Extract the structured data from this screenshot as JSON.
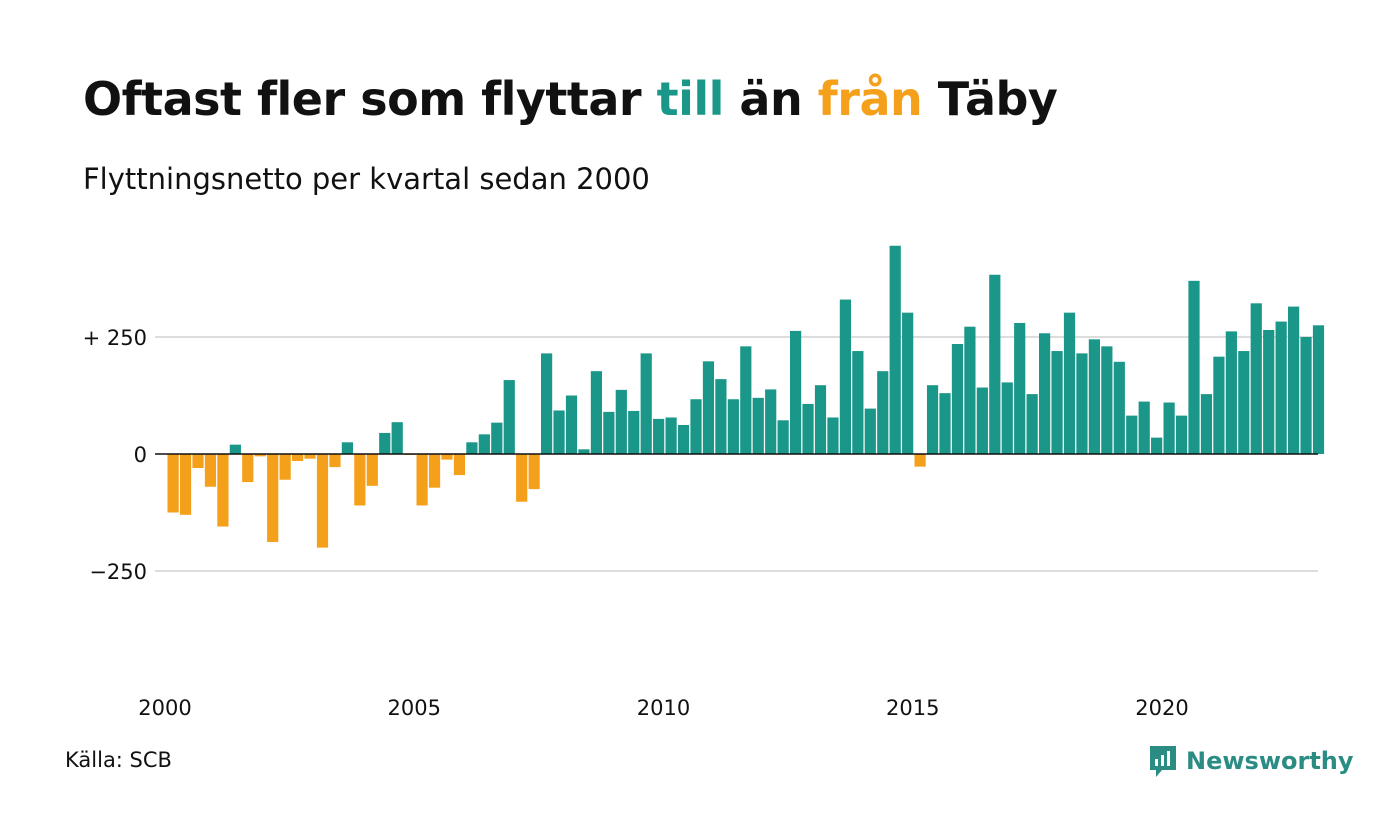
{
  "title": {
    "part1": "Oftast fler som flyttar ",
    "till": "till",
    "part2": " än ",
    "fran": "från",
    "part3": " Täby"
  },
  "subtitle": "Flyttningsnetto per kvartal sedan 2000",
  "source": "Källa: SCB",
  "logo": {
    "text": "Newsworthy",
    "icon": "newsworthy-logo-icon"
  },
  "colors": {
    "positive": "#1a9788",
    "negative": "#f5a01a",
    "till": "#1a9788",
    "fran": "#f5a01a",
    "grid": "#dddddd",
    "zero": "#111111"
  },
  "chart_data": {
    "type": "bar",
    "ylim": [
      -425,
      450
    ],
    "yticks": [
      {
        "value": 250,
        "label": "+ 250"
      },
      {
        "value": 0,
        "label": "0"
      },
      {
        "value": -250,
        "label": "−250"
      }
    ],
    "xticks": [
      {
        "year": 2000,
        "label": "2000"
      },
      {
        "year": 2005,
        "label": "2005"
      },
      {
        "year": 2010,
        "label": "2010"
      },
      {
        "year": 2015,
        "label": "2015"
      },
      {
        "year": 2020,
        "label": "2020"
      }
    ],
    "categories": [
      "2000K1",
      "2000K2",
      "2000K3",
      "2000K4",
      "2001K1",
      "2001K2",
      "2001K3",
      "2001K4",
      "2002K1",
      "2002K2",
      "2002K3",
      "2002K4",
      "2003K1",
      "2003K2",
      "2003K3",
      "2003K4",
      "2004K1",
      "2004K2",
      "2004K3",
      "2004K4",
      "2005K1",
      "2005K2",
      "2005K3",
      "2005K4",
      "2006K1",
      "2006K2",
      "2006K3",
      "2006K4",
      "2007K1",
      "2007K2",
      "2007K3",
      "2007K4",
      "2008K1",
      "2008K2",
      "2008K3",
      "2008K4",
      "2009K1",
      "2009K2",
      "2009K3",
      "2009K4",
      "2010K1",
      "2010K2",
      "2010K3",
      "2010K4",
      "2011K1",
      "2011K2",
      "2011K3",
      "2011K4",
      "2012K1",
      "2012K2",
      "2012K3",
      "2012K4",
      "2013K1",
      "2013K2",
      "2013K3",
      "2013K4",
      "2014K1",
      "2014K2",
      "2014K3",
      "2014K4",
      "2015K1",
      "2015K2",
      "2015K3",
      "2015K4",
      "2016K1",
      "2016K2",
      "2016K3",
      "2016K4",
      "2017K1",
      "2017K2",
      "2017K3",
      "2017K4",
      "2018K1",
      "2018K2",
      "2018K3",
      "2018K4",
      "2019K1",
      "2019K2",
      "2019K3",
      "2019K4",
      "2020K1",
      "2020K2",
      "2020K3",
      "2020K4",
      "2021K1",
      "2021K2",
      "2021K3",
      "2021K4",
      "2022K1",
      "2022K2",
      "2022K3",
      "2022K4",
      "2023K1"
    ],
    "values": [
      -125,
      -130,
      -30,
      -70,
      -155,
      20,
      -60,
      -5,
      -188,
      -55,
      -15,
      -10,
      -200,
      -28,
      25,
      -110,
      -68,
      45,
      68,
      -2,
      -110,
      -72,
      -12,
      -45,
      25,
      42,
      67,
      158,
      -102,
      -75,
      215,
      93,
      125,
      10,
      177,
      90,
      137,
      92,
      215,
      75,
      78,
      62,
      117,
      198,
      160,
      117,
      230,
      120,
      138,
      72,
      263,
      107,
      147,
      78,
      330,
      220,
      97,
      177,
      445,
      302,
      -27,
      147,
      130,
      235,
      272,
      142,
      383,
      153,
      280,
      128,
      258,
      220,
      302,
      215,
      245,
      230,
      197,
      82,
      112,
      35,
      110,
      82,
      370,
      128,
      208,
      262,
      220,
      322,
      265,
      283,
      315,
      250,
      275
    ]
  }
}
